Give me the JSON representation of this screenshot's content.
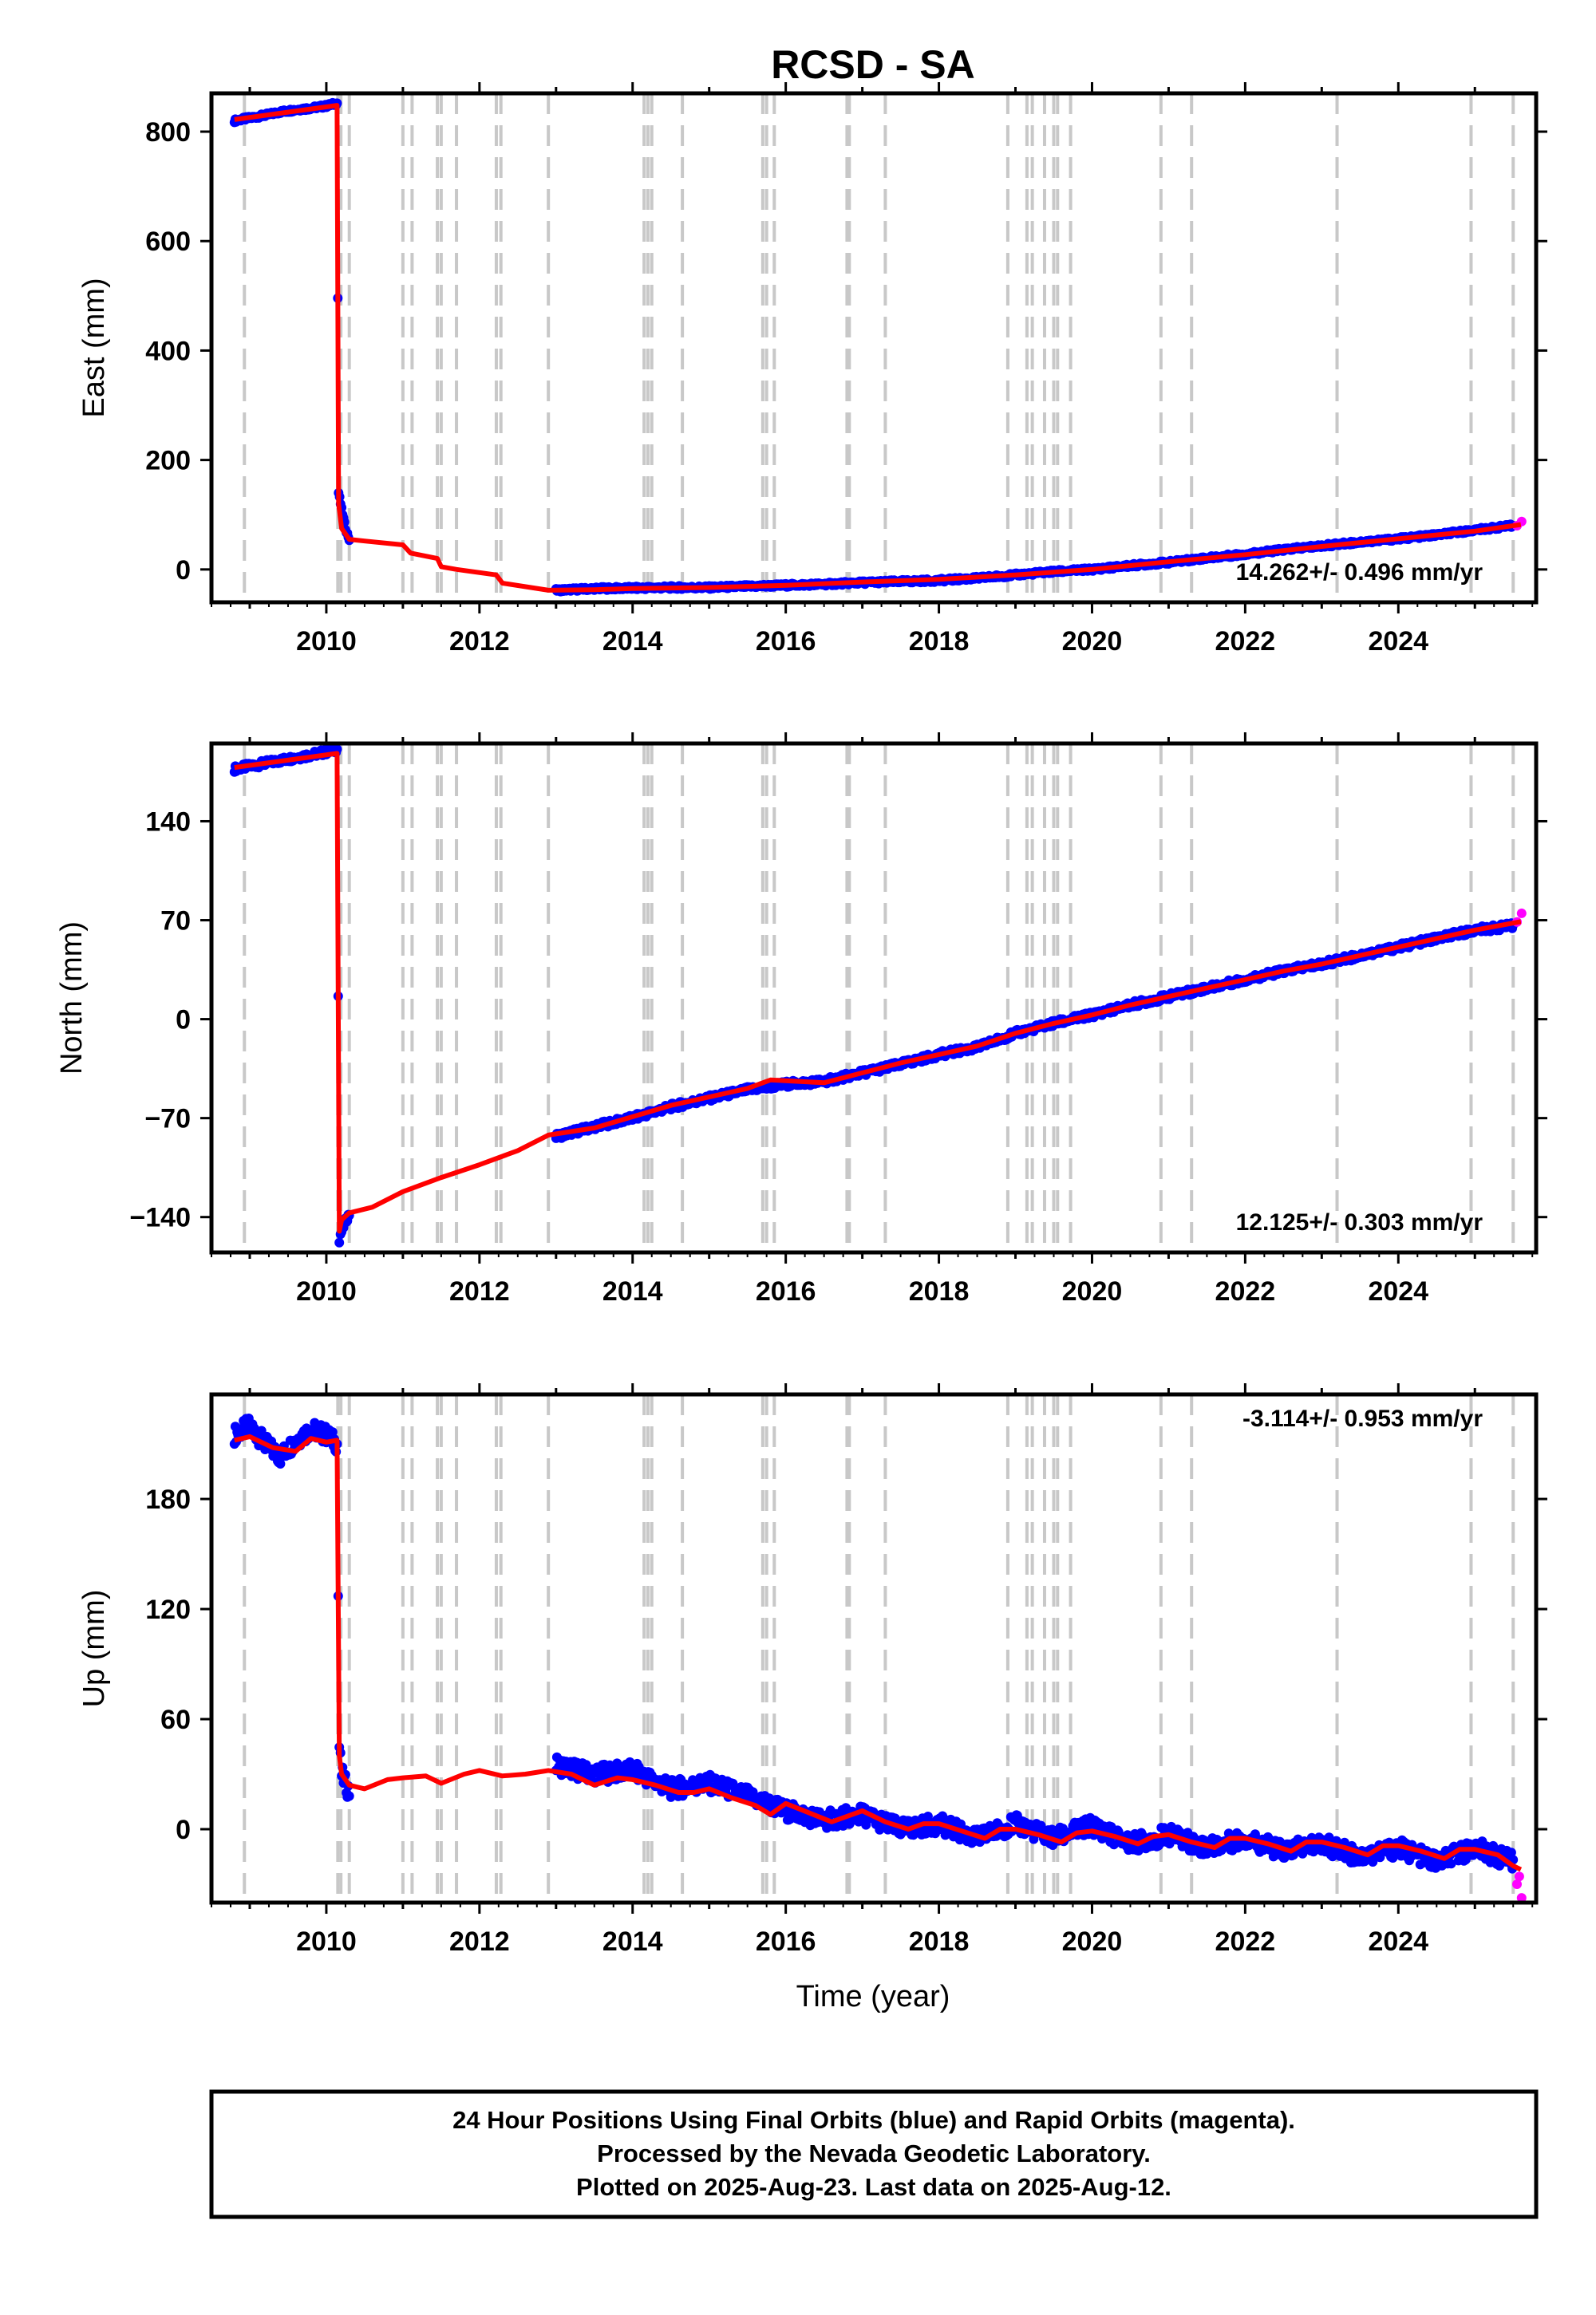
{
  "title": "RCSD - SA",
  "xlabel": "Time (year)",
  "footer": {
    "lines": [
      "24 Hour Positions Using Final Orbits (blue) and Rapid Orbits (magenta).",
      "Processed by the Nevada Geodetic Laboratory.",
      "Plotted on 2025-Aug-23. Last data on 2025-Aug-12."
    ]
  },
  "colors": {
    "final_orbits": "#0000ff",
    "rapid_orbits": "#ff00ff",
    "model": "#ff0000",
    "event_lines": "#c8c8c8",
    "frame": "#000000"
  },
  "event_lines_years": [
    2008.93,
    2010.15,
    2010.19,
    2010.3,
    2011.0,
    2011.12,
    2011.45,
    2011.5,
    2011.7,
    2012.22,
    2012.28,
    2012.9,
    2014.15,
    2014.2,
    2014.25,
    2014.65,
    2015.7,
    2015.75,
    2015.85,
    2016.8,
    2016.83,
    2017.3,
    2018.9,
    2019.15,
    2019.22,
    2019.38,
    2019.5,
    2019.55,
    2019.72,
    2020.9,
    2021.3,
    2023.2,
    2024.95,
    2025.5
  ],
  "chart_data": [
    {
      "type": "scatter",
      "panel": "east",
      "ylabel": "East (mm)",
      "xlim": [
        2008.5,
        2025.8
      ],
      "ylim": [
        -60,
        870
      ],
      "x_ticks": [
        2010,
        2012,
        2014,
        2016,
        2018,
        2020,
        2022,
        2024
      ],
      "y_ticks": [
        0,
        200,
        400,
        600,
        800
      ],
      "rate_label": "14.262+/- 0.496 mm/yr",
      "rate_position": "bottom-right",
      "series": [
        {
          "role": "final_orbits",
          "x": [
            2008.8,
            2009.0,
            2009.2,
            2009.4,
            2009.6,
            2009.8,
            2010.0,
            2010.14,
            2010.16,
            2010.2,
            2010.25,
            2010.3,
            2013.0,
            2013.5,
            2014.0,
            2014.5,
            2015.0,
            2015.5,
            2016.0,
            2016.5,
            2017.0,
            2017.5,
            2018.0,
            2018.5,
            2019.0,
            2019.5,
            2020.0,
            2020.5,
            2021.0,
            2021.5,
            2022.0,
            2022.5,
            2023.0,
            2023.5,
            2024.0,
            2024.5,
            2025.0,
            2025.5
          ],
          "y": [
            820,
            825,
            830,
            836,
            840,
            843,
            847,
            852,
            140,
            110,
            75,
            55,
            -38,
            -35,
            -34,
            -33,
            -33,
            -31,
            -29,
            -27,
            -24,
            -22,
            -20,
            -16,
            -10,
            -4,
            0,
            7,
            13,
            21,
            28,
            36,
            43,
            50,
            56,
            63,
            72,
            80
          ]
        },
        {
          "role": "rapid_orbits",
          "x": [
            2025.55,
            2025.61
          ],
          "y": [
            83,
            85
          ]
        },
        {
          "role": "model",
          "x": [
            2008.8,
            2010.14,
            2010.16,
            2010.2,
            2010.3,
            2010.5,
            2011.0,
            2011.1,
            2011.45,
            2011.5,
            2011.7,
            2012.22,
            2012.3,
            2012.9,
            2013.5,
            2014.0,
            2015.0,
            2016.0,
            2017.0,
            2018.0,
            2019.0,
            2020.0,
            2021.0,
            2022.0,
            2023.0,
            2024.0,
            2025.0,
            2025.6
          ],
          "y": [
            822,
            848,
            120,
            75,
            55,
            52,
            45,
            30,
            20,
            5,
            0,
            -10,
            -25,
            -38,
            -37,
            -35,
            -33,
            -29,
            -23,
            -18,
            -10,
            0,
            14,
            27,
            42,
            56,
            70,
            82
          ]
        }
      ]
    },
    {
      "type": "scatter",
      "panel": "north",
      "ylabel": "North (mm)",
      "xlim": [
        2008.5,
        2025.8
      ],
      "ylim": [
        -165,
        195
      ],
      "x_ticks": [
        2010,
        2012,
        2014,
        2016,
        2018,
        2020,
        2022,
        2024
      ],
      "y_ticks": [
        -140,
        -70,
        0,
        70,
        140
      ],
      "rate_label": "12.125+/- 0.303 mm/yr",
      "rate_position": "bottom-right",
      "series": [
        {
          "role": "final_orbits",
          "x": [
            2008.8,
            2009.0,
            2009.2,
            2009.4,
            2009.6,
            2009.8,
            2010.0,
            2010.14,
            2010.17,
            2010.2,
            2010.25,
            2010.3,
            2013.0,
            2013.5,
            2014.0,
            2014.5,
            2015.0,
            2015.5,
            2016.0,
            2016.5,
            2017.0,
            2017.5,
            2018.0,
            2018.5,
            2019.0,
            2019.5,
            2020.0,
            2020.5,
            2021.0,
            2021.5,
            2022.0,
            2022.5,
            2023.0,
            2023.5,
            2024.0,
            2024.5,
            2025.0,
            2025.5
          ],
          "y": [
            177,
            179,
            181,
            183,
            185,
            187,
            189,
            191,
            -158,
            -150,
            -143,
            -138,
            -83,
            -76,
            -70,
            -62,
            -56,
            -50,
            -46,
            -44,
            -38,
            -32,
            -25,
            -20,
            -10,
            -3,
            3,
            10,
            16,
            22,
            28,
            34,
            39,
            45,
            51,
            57,
            63,
            66
          ]
        },
        {
          "role": "rapid_orbits",
          "x": [
            2025.55,
            2025.61
          ],
          "y": [
            71,
            73
          ]
        },
        {
          "role": "model",
          "x": [
            2008.8,
            2010.14,
            2010.17,
            2010.2,
            2010.3,
            2010.6,
            2011.0,
            2011.5,
            2012.0,
            2012.5,
            2012.9,
            2013.5,
            2014.0,
            2014.5,
            2015.0,
            2015.5,
            2015.8,
            2016.5,
            2017.0,
            2017.5,
            2018.0,
            2018.5,
            2019.0,
            2019.5,
            2020.0,
            2020.5,
            2021.0,
            2021.5,
            2022.0,
            2022.5,
            2023.0,
            2023.5,
            2024.0,
            2024.5,
            2025.0,
            2025.6
          ],
          "y": [
            178,
            188,
            -150,
            -142,
            -137,
            -133,
            -122,
            -112,
            -103,
            -93,
            -82,
            -77,
            -69,
            -61,
            -55,
            -49,
            -43,
            -45,
            -38,
            -31,
            -25,
            -19,
            -10,
            -3,
            3,
            10,
            16,
            22,
            28,
            34,
            39,
            45,
            51,
            57,
            63,
            69
          ]
        }
      ]
    },
    {
      "type": "scatter",
      "panel": "up",
      "ylabel": "Up (mm)",
      "xlim": [
        2008.5,
        2025.8
      ],
      "ylim": [
        -40,
        237
      ],
      "x_ticks": [
        2010,
        2012,
        2014,
        2016,
        2018,
        2020,
        2022,
        2024
      ],
      "y_ticks": [
        0,
        60,
        120,
        180
      ],
      "rate_label": "-3.114+/- 0.953 mm/yr",
      "rate_position": "top-right",
      "series": [
        {
          "role": "final_orbits",
          "x": [
            2008.8,
            2009.0,
            2009.2,
            2009.4,
            2009.6,
            2009.8,
            2010.0,
            2010.14,
            2010.17,
            2010.2,
            2010.25,
            2010.3,
            2013.0,
            2013.5,
            2014.0,
            2014.5,
            2015.0,
            2015.5,
            2016.0,
            2016.5,
            2017.0,
            2017.5,
            2018.0,
            2018.5,
            2019.0,
            2019.5,
            2020.0,
            2020.5,
            2021.0,
            2021.5,
            2022.0,
            2022.5,
            2023.0,
            2023.5,
            2024.0,
            2024.5,
            2025.0,
            2025.5
          ],
          "y": [
            215,
            220,
            210,
            203,
            212,
            218,
            215,
            210,
            45,
            30,
            25,
            20,
            35,
            30,
            32,
            22,
            25,
            18,
            10,
            5,
            8,
            0,
            3,
            -5,
            3,
            -5,
            2,
            -8,
            -3,
            -10,
            -5,
            -12,
            -8,
            -15,
            -10,
            -18,
            -10,
            -18
          ]
        },
        {
          "role": "rapid_orbits",
          "x": [
            2025.55,
            2025.58,
            2025.61
          ],
          "y": [
            -25,
            -30,
            -33
          ]
        },
        {
          "role": "model",
          "x": [
            2008.8,
            2009.0,
            2009.3,
            2009.6,
            2009.8,
            2010.0,
            2010.14,
            2010.17,
            2010.2,
            2010.3,
            2010.5,
            2010.8,
            2011.0,
            2011.3,
            2011.5,
            2011.8,
            2012.0,
            2012.3,
            2012.6,
            2012.9,
            2013.2,
            2013.5,
            2013.8,
            2014.0,
            2014.3,
            2014.6,
            2014.8,
            2015.0,
            2015.3,
            2015.6,
            2015.8,
            2016.0,
            2016.3,
            2016.6,
            2016.8,
            2017.0,
            2017.3,
            2017.6,
            2017.8,
            2018.0,
            2018.3,
            2018.6,
            2018.8,
            2019.0,
            2019.3,
            2019.6,
            2019.8,
            2020.0,
            2020.3,
            2020.6,
            2020.8,
            2021.0,
            2021.3,
            2021.6,
            2021.8,
            2022.0,
            2022.3,
            2022.6,
            2022.8,
            2023.0,
            2023.3,
            2023.6,
            2023.8,
            2024.0,
            2024.3,
            2024.6,
            2024.8,
            2025.0,
            2025.3,
            2025.5,
            2025.6
          ],
          "y": [
            212,
            214,
            208,
            206,
            213,
            211,
            212,
            40,
            30,
            24,
            22,
            27,
            28,
            29,
            25,
            30,
            32,
            29,
            30,
            32,
            30,
            24,
            28,
            27,
            24,
            20,
            20,
            22,
            17,
            13,
            8,
            14,
            9,
            4,
            7,
            10,
            4,
            0,
            3,
            3,
            -1,
            -5,
            0,
            0,
            -3,
            -7,
            -2,
            -1,
            -4,
            -8,
            -4,
            -3,
            -7,
            -10,
            -5,
            -5,
            -8,
            -12,
            -7,
            -7,
            -10,
            -14,
            -9,
            -9,
            -12,
            -16,
            -11,
            -11,
            -14,
            -20,
            -22
          ]
        }
      ]
    }
  ]
}
